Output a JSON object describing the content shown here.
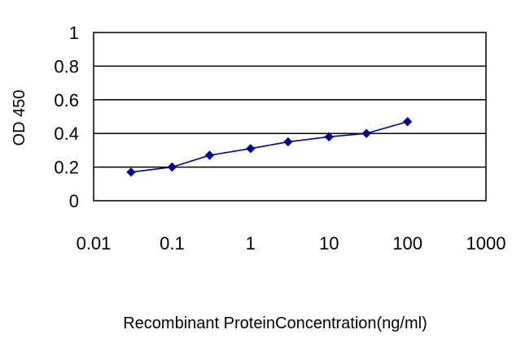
{
  "chart_data": {
    "type": "line",
    "title": "",
    "xlabel": "Recombinant ProteinConcentration(ng/ml)",
    "ylabel": "OD 450",
    "xscale": "log",
    "xlim": [
      0.01,
      1000
    ],
    "ylim": [
      0,
      1
    ],
    "x_ticks": [
      "0.01",
      "0.1",
      "1",
      "10",
      "100",
      "1000"
    ],
    "y_ticks": [
      "0",
      "0.2",
      "0.4",
      "0.6",
      "0.8",
      "1"
    ],
    "grid": "horizontal",
    "legend": "none",
    "series": [
      {
        "color": "#00008B",
        "marker": "diamond",
        "x": [
          0.03,
          0.1,
          0.3,
          1,
          3,
          10,
          30,
          100
        ],
        "values": [
          0.17,
          0.2,
          0.27,
          0.31,
          0.35,
          0.38,
          0.4,
          0.47
        ]
      }
    ]
  }
}
